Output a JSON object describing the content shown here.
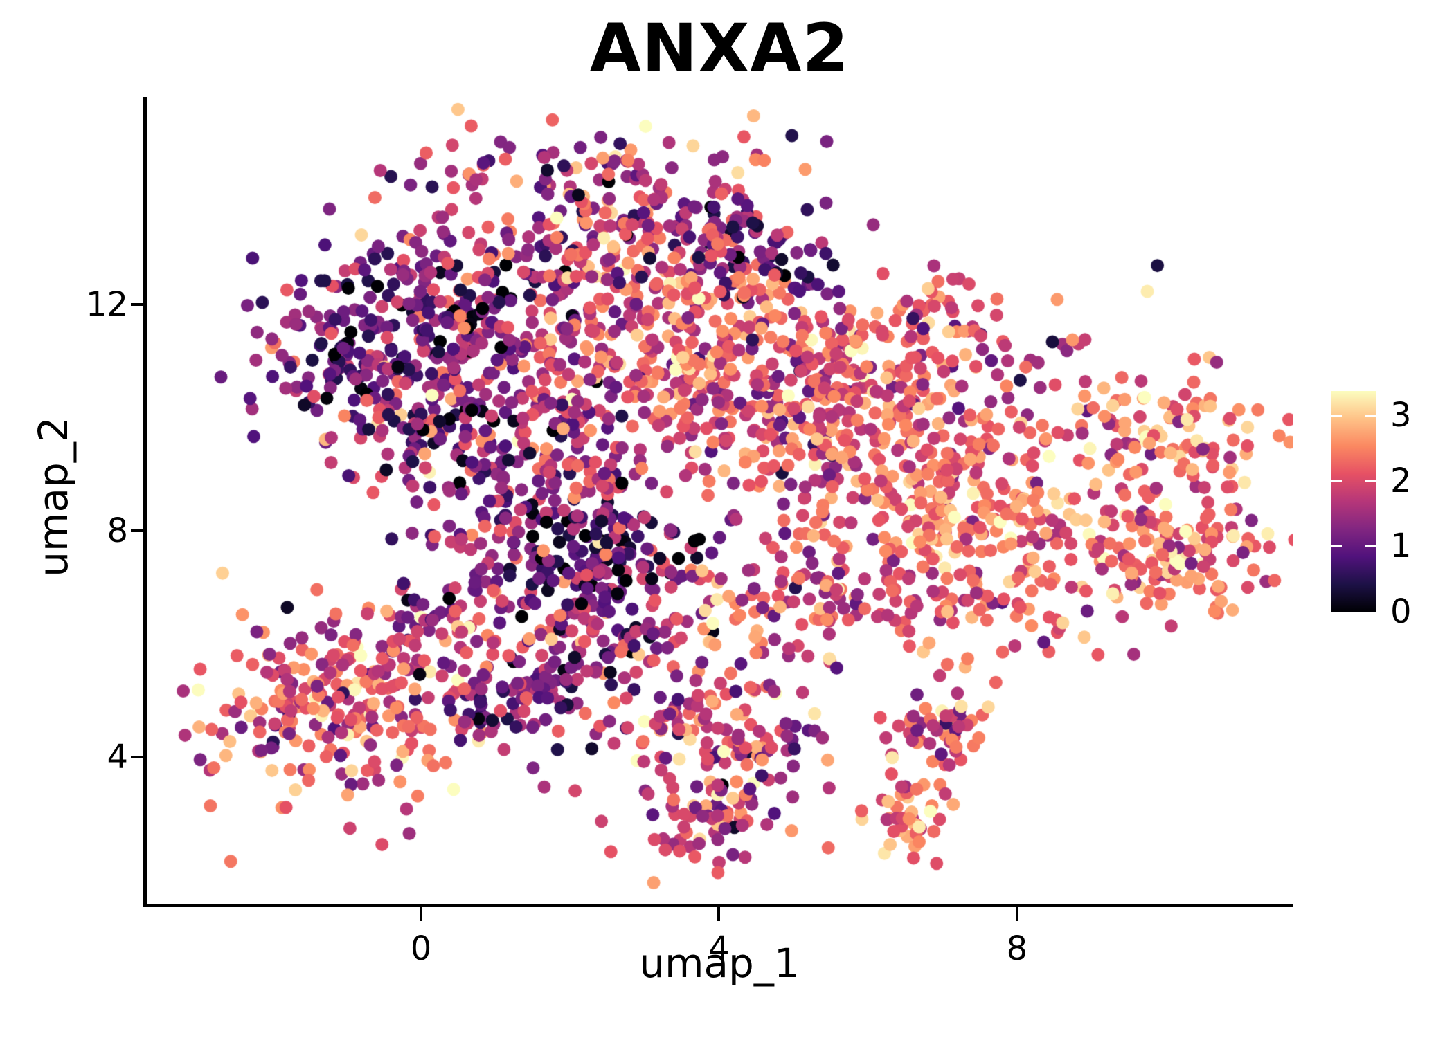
{
  "figure": {
    "background": "#ffffff",
    "text_color": "#000000",
    "spine_color": "#000000"
  },
  "chart_data": {
    "type": "scatter",
    "subtype": "umap-feature-plot",
    "title": "ANXA2",
    "xlabel": "umap_1",
    "ylabel": "umap_2",
    "grid": false,
    "x_range": [
      -3.69,
      11.7
    ],
    "y_range": [
      1.41,
      15.67
    ],
    "x_ticks": [
      {
        "value": 0,
        "label": "0"
      },
      {
        "value": 4,
        "label": "4"
      },
      {
        "value": 8,
        "label": "8"
      }
    ],
    "y_ticks": [
      {
        "value": 12,
        "label": "12"
      },
      {
        "value": 8,
        "label": "8"
      },
      {
        "value": 4,
        "label": "4"
      }
    ],
    "point_radius_px": 9.5,
    "n_points": 3182,
    "colormap": {
      "name": "magma",
      "stops": [
        [
          0.0,
          "#000004"
        ],
        [
          0.125,
          "#1d1147"
        ],
        [
          0.25,
          "#51127c"
        ],
        [
          0.375,
          "#822681"
        ],
        [
          0.5,
          "#b63679"
        ],
        [
          0.625,
          "#e65164"
        ],
        [
          0.75,
          "#fb8861"
        ],
        [
          0.875,
          "#fec287"
        ],
        [
          1.0,
          "#fcfdbf"
        ]
      ]
    },
    "colorbar": {
      "position": "right",
      "domain": [
        0,
        3.375
      ],
      "ticks": [
        {
          "value": 3,
          "label": "3"
        },
        {
          "value": 2,
          "label": "2"
        },
        {
          "value": 1,
          "label": "1"
        },
        {
          "value": 0,
          "label": "0"
        }
      ]
    },
    "generator": {
      "seed": 12,
      "note": "Point cloud approximated as gaussian clusters estimated from the screenshot; expression values (color) clamped to colorbar domain.",
      "clusters": [
        {
          "id": "top-center",
          "cx": 2.5,
          "cy": 13.6,
          "sx": 1.25,
          "sy": 0.75,
          "rot": 0,
          "n": 230,
          "expr_mean": 1.7,
          "expr_sd": 0.75
        },
        {
          "id": "top-left-dark-wing",
          "cx": -0.85,
          "cy": 11.1,
          "sx": 0.6,
          "sy": 0.75,
          "rot": 0,
          "n": 140,
          "expr_mean": 1.0,
          "expr_sd": 0.6
        },
        {
          "id": "upper-left-dark-band",
          "cx": 0.45,
          "cy": 12.2,
          "sx": 0.75,
          "sy": 0.55,
          "rot": -20,
          "n": 90,
          "expr_mean": 1.05,
          "expr_sd": 0.6
        },
        {
          "id": "left-mid",
          "cx": 0.3,
          "cy": 10.3,
          "sx": 0.75,
          "sy": 0.8,
          "rot": 0,
          "n": 140,
          "expr_mean": 1.5,
          "expr_sd": 0.7
        },
        {
          "id": "center",
          "cx": 2.0,
          "cy": 11.2,
          "sx": 1.0,
          "sy": 0.95,
          "rot": 0,
          "n": 190,
          "expr_mean": 1.8,
          "expr_sd": 0.7
        },
        {
          "id": "center-right-orange",
          "cx": 3.6,
          "cy": 11.5,
          "sx": 0.85,
          "sy": 0.95,
          "rot": 0,
          "n": 190,
          "expr_mean": 2.2,
          "expr_sd": 0.55
        },
        {
          "id": "topright-dark-chain",
          "cx": 4.25,
          "cy": 13.1,
          "sx": 0.85,
          "sy": 0.28,
          "rot": -40,
          "n": 75,
          "expr_mean": 0.95,
          "expr_sd": 0.5
        },
        {
          "id": "gap-sparse",
          "cx": 4.9,
          "cy": 10.2,
          "sx": 0.85,
          "sy": 1.0,
          "rot": 0,
          "n": 120,
          "expr_mean": 1.9,
          "expr_sd": 0.65
        },
        {
          "id": "upper-right-sparse",
          "cx": 7.0,
          "cy": 11.4,
          "sx": 1.15,
          "sy": 0.75,
          "rot": 0,
          "n": 80,
          "expr_mean": 2.0,
          "expr_sd": 0.65
        },
        {
          "id": "dark-neck-blob",
          "cx": 2.4,
          "cy": 7.5,
          "sx": 0.72,
          "sy": 0.55,
          "rot": -15,
          "n": 140,
          "expr_mean": 0.75,
          "expr_sd": 0.55
        },
        {
          "id": "neck-upper",
          "cx": 1.7,
          "cy": 9.1,
          "sx": 0.75,
          "sy": 0.65,
          "rot": 0,
          "n": 100,
          "expr_mean": 1.5,
          "expr_sd": 0.7
        },
        {
          "id": "neck-lower",
          "cx": 2.4,
          "cy": 6.0,
          "sx": 0.65,
          "sy": 0.75,
          "rot": 0,
          "n": 110,
          "expr_mean": 1.65,
          "expr_sd": 0.7
        },
        {
          "id": "neck-left-sparse",
          "cx": 0.95,
          "cy": 7.9,
          "sx": 0.5,
          "sy": 0.7,
          "rot": 0,
          "n": 45,
          "expr_mean": 1.4,
          "expr_sd": 0.65
        },
        {
          "id": "right-main",
          "cx": 7.3,
          "cy": 8.2,
          "sx": 1.45,
          "sy": 1.15,
          "rot": -10,
          "n": 420,
          "expr_mean": 2.3,
          "expr_sd": 0.55
        },
        {
          "id": "right-upper",
          "cx": 5.9,
          "cy": 10.5,
          "sx": 1.05,
          "sy": 0.8,
          "rot": 0,
          "n": 170,
          "expr_mean": 2.1,
          "expr_sd": 0.6
        },
        {
          "id": "far-right-top",
          "cx": 10.3,
          "cy": 9.65,
          "sx": 0.55,
          "sy": 0.5,
          "rot": 0,
          "n": 85,
          "expr_mean": 2.4,
          "expr_sd": 0.5
        },
        {
          "id": "far-right-lower",
          "cx": 10.0,
          "cy": 7.55,
          "sx": 0.7,
          "sy": 0.55,
          "rot": 0,
          "n": 110,
          "expr_mean": 2.3,
          "expr_sd": 0.55
        },
        {
          "id": "bottom-left",
          "cx": -1.05,
          "cy": 5.0,
          "sx": 1.0,
          "sy": 0.85,
          "rot": 0,
          "n": 260,
          "expr_mean": 2.05,
          "expr_sd": 0.65
        },
        {
          "id": "bottom-left-dark-clump",
          "cx": 0.85,
          "cy": 4.95,
          "sx": 0.22,
          "sy": 0.28,
          "rot": 0,
          "n": 22,
          "expr_mean": 0.9,
          "expr_sd": 0.4
        },
        {
          "id": "purple-trail",
          "cx": 1.45,
          "cy": 5.25,
          "sx": 0.4,
          "sy": 0.3,
          "rot": 0,
          "n": 35,
          "expr_mean": 1.25,
          "expr_sd": 0.5
        },
        {
          "id": "bridge",
          "cx": 0.25,
          "cy": 6.3,
          "sx": 0.55,
          "sy": 0.5,
          "rot": 0,
          "n": 55,
          "expr_mean": 1.75,
          "expr_sd": 0.65
        },
        {
          "id": "mid-connector",
          "cx": 4.8,
          "cy": 6.7,
          "sx": 1.0,
          "sy": 0.55,
          "rot": 0,
          "n": 85,
          "expr_mean": 2.0,
          "expr_sd": 0.6
        },
        {
          "id": "bottom-middle",
          "cx": 3.9,
          "cy": 4.3,
          "sx": 0.75,
          "sy": 0.85,
          "rot": 25,
          "n": 140,
          "expr_mean": 1.9,
          "expr_sd": 0.7
        },
        {
          "id": "bottom-tail",
          "cx": 3.95,
          "cy": 2.85,
          "sx": 0.5,
          "sy": 0.45,
          "rot": 0,
          "n": 55,
          "expr_mean": 1.85,
          "expr_sd": 0.65
        },
        {
          "id": "small-right-mid",
          "cx": 6.9,
          "cy": 4.45,
          "sx": 0.38,
          "sy": 0.3,
          "rot": 0,
          "n": 50,
          "expr_mean": 2.0,
          "expr_sd": 0.6
        },
        {
          "id": "small-right-low",
          "cx": 6.55,
          "cy": 3.0,
          "sx": 0.28,
          "sy": 0.45,
          "rot": 0,
          "n": 45,
          "expr_mean": 2.45,
          "expr_sd": 0.5
        }
      ]
    }
  }
}
